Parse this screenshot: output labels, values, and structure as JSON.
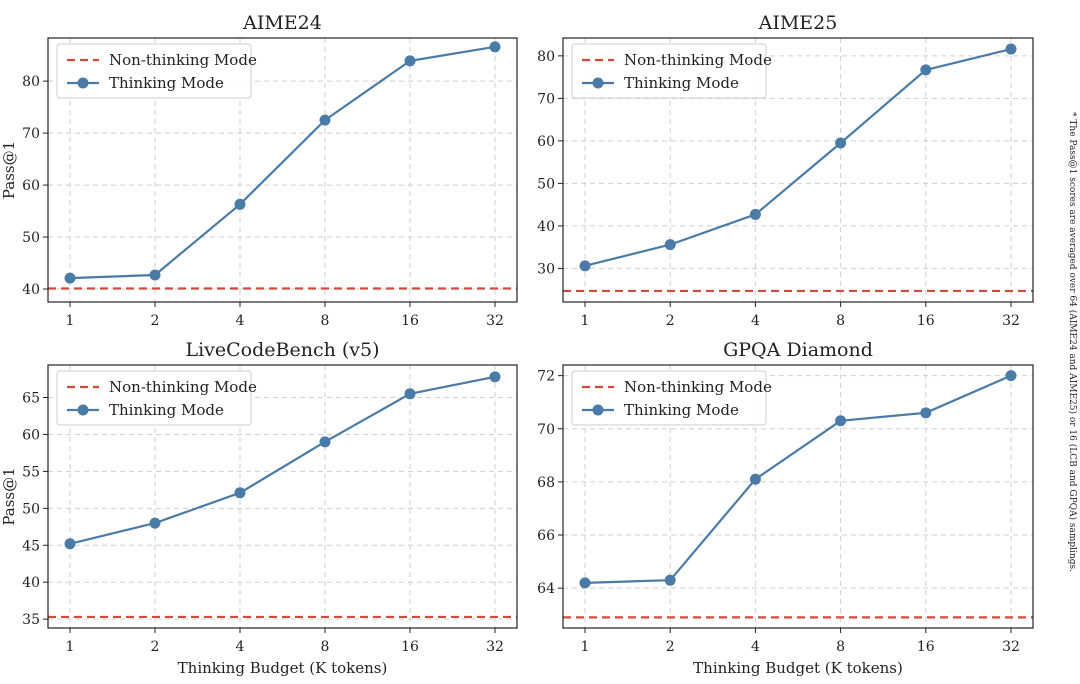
{
  "footnote": "* The Pass@1 scores are averaged over 64 (AIME24 and AIME25) or 16 (LCB and GPQA) samplings.",
  "colors": {
    "thinking": "#4a7ba6",
    "non_thinking": "#d24b3a",
    "grid": "#cfcfcf",
    "axis": "#222222"
  },
  "chart_data": [
    {
      "type": "line",
      "title": "AIME24",
      "xlabel": "",
      "ylabel": "Pass@1",
      "x_scale": "log2",
      "categories": [
        "1",
        "2",
        "4",
        "8",
        "16",
        "32"
      ],
      "x": [
        1,
        2,
        4,
        8,
        16,
        32
      ],
      "ylim": [
        37.5,
        88.3
      ],
      "yticks": [
        40,
        50,
        60,
        70,
        80
      ],
      "grid": true,
      "legend": "upper-left",
      "series": [
        {
          "name": "Non-thinking Mode",
          "style": "dashed",
          "constant": 40.1
        },
        {
          "name": "Thinking Mode",
          "style": "solid-markers",
          "values": [
            42.1,
            42.7,
            56.3,
            72.5,
            83.9,
            86.6
          ]
        }
      ]
    },
    {
      "type": "line",
      "title": "AIME25",
      "xlabel": "",
      "ylabel": "",
      "x_scale": "log2",
      "categories": [
        "1",
        "2",
        "4",
        "8",
        "16",
        "32"
      ],
      "x": [
        1,
        2,
        4,
        8,
        16,
        32
      ],
      "ylim": [
        22.1,
        84.2
      ],
      "yticks": [
        30,
        40,
        50,
        60,
        70,
        80
      ],
      "grid": true,
      "legend": "upper-left",
      "series": [
        {
          "name": "Non-thinking Mode",
          "style": "dashed",
          "constant": 24.7
        },
        {
          "name": "Thinking Mode",
          "style": "solid-markers",
          "values": [
            30.6,
            35.6,
            42.7,
            59.5,
            76.7,
            81.6
          ]
        }
      ]
    },
    {
      "type": "line",
      "title": "LiveCodeBench (v5)",
      "xlabel": "Thinking Budget (K tokens)",
      "ylabel": "Pass@1",
      "x_scale": "log2",
      "categories": [
        "1",
        "2",
        "4",
        "8",
        "16",
        "32"
      ],
      "x": [
        1,
        2,
        4,
        8,
        16,
        32
      ],
      "ylim": [
        33.8,
        69.4
      ],
      "yticks": [
        35,
        40,
        45,
        50,
        55,
        60,
        65
      ],
      "grid": true,
      "legend": "upper-left",
      "series": [
        {
          "name": "Non-thinking Mode",
          "style": "dashed",
          "constant": 35.3
        },
        {
          "name": "Thinking Mode",
          "style": "solid-markers",
          "values": [
            45.2,
            48.0,
            52.1,
            59.0,
            65.5,
            67.8
          ]
        }
      ]
    },
    {
      "type": "line",
      "title": "GPQA Diamond",
      "xlabel": "Thinking Budget (K tokens)",
      "ylabel": "",
      "x_scale": "log2",
      "categories": [
        "1",
        "2",
        "4",
        "8",
        "16",
        "32"
      ],
      "x": [
        1,
        2,
        4,
        8,
        16,
        32
      ],
      "ylim": [
        62.5,
        72.4
      ],
      "yticks": [
        64,
        66,
        68,
        70,
        72
      ],
      "grid": true,
      "legend": "upper-left",
      "series": [
        {
          "name": "Non-thinking Mode",
          "style": "dashed",
          "constant": 62.9
        },
        {
          "name": "Thinking Mode",
          "style": "solid-markers",
          "values": [
            64.2,
            64.3,
            68.1,
            70.3,
            70.6,
            72.0
          ]
        }
      ]
    }
  ]
}
